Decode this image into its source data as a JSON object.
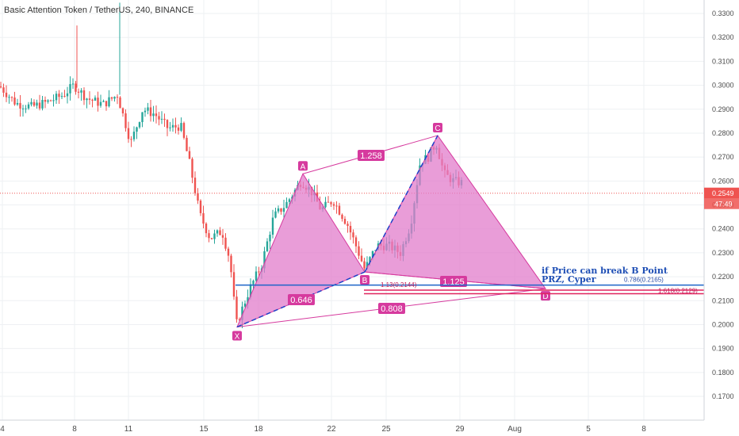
{
  "header": {
    "title": "Basic Attention Token / TetherUS, 240, BINANCE"
  },
  "chart_data": {
    "type": "candlestick",
    "title": "Basic Attention Token / TetherUS, 240, BINANCE",
    "ylim": [
      0.1625,
      0.3345
    ],
    "y_ticks": [
      "0.3300",
      "0.3200",
      "0.3100",
      "0.3000",
      "0.2900",
      "0.2800",
      "0.2700",
      "0.2600",
      "0.2500",
      "0.2400",
      "0.2300",
      "0.2200",
      "0.2100",
      "0.2000",
      "0.1900",
      "0.1800",
      "0.1700"
    ],
    "x_ticks": [
      "4",
      "8",
      "11",
      "15",
      "18",
      "22",
      "25",
      "29",
      "Aug",
      "5",
      "8"
    ],
    "last_price": "0.2549",
    "countdown": "47:49",
    "grid": true,
    "colors": {
      "up": "#26a69a",
      "down": "#ef5350",
      "pattern": "#d63a9e",
      "pattern_fill": "#e17ccb",
      "fib_blue": "#1e64c8",
      "fib_red": "#e0245e"
    },
    "pattern": {
      "points": [
        {
          "name": "X",
          "price": 0.199
        },
        {
          "name": "A",
          "price": 0.263
        },
        {
          "name": "B",
          "price": 0.222
        },
        {
          "name": "C",
          "price": 0.279
        },
        {
          "name": "D",
          "price": 0.215
        }
      ],
      "ratios": [
        {
          "label": "1.258"
        },
        {
          "label": "0.646"
        },
        {
          "label": "1.125"
        },
        {
          "label": "0.808"
        }
      ]
    },
    "levels": [
      {
        "label": "0.786(0.2165)",
        "price": 0.2165,
        "color": "#1e64c8"
      },
      {
        "label": "1.13(0.2144)",
        "price": 0.2144,
        "color": "#e0245e"
      },
      {
        "label": "1.618(0.2129)",
        "price": 0.2129,
        "color": "#e0245e"
      }
    ],
    "annotation": [
      "if Price can break B Point",
      "PRZ, Cyper"
    ]
  }
}
